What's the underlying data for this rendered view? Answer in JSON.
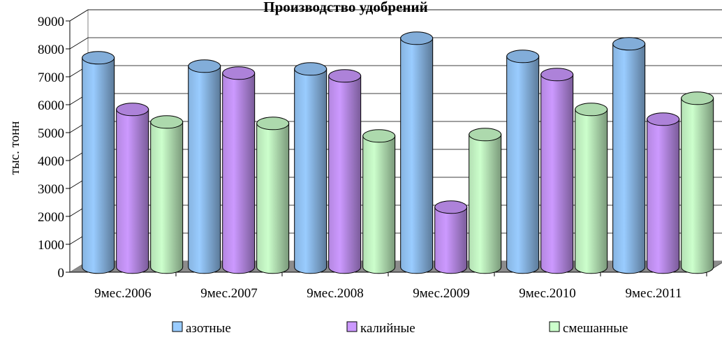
{
  "chart_data": {
    "type": "bar",
    "title": "Производство удобрений",
    "xlabel": "",
    "ylabel": "тыс. тонн",
    "ylim": [
      0,
      9000
    ],
    "y_ticks": [
      0,
      1000,
      2000,
      3000,
      4000,
      5000,
      6000,
      7000,
      8000,
      9000
    ],
    "grid": true,
    "legend_position": "bottom",
    "categories": [
      "9мес.2006",
      "9мес.2007",
      "9мес.2008",
      "9мес.2009",
      "9мес.2010",
      "9мес.2011"
    ],
    "series": [
      {
        "name": "азотные",
        "values": [
          7500,
          7200,
          7100,
          8200,
          7550,
          8000
        ],
        "color": "#99ccff"
      },
      {
        "name": "калийные",
        "values": [
          5650,
          6950,
          6850,
          2150,
          6900,
          5300
        ],
        "color": "#cc99ff"
      },
      {
        "name": "смешанные",
        "values": [
          5200,
          5150,
          4700,
          4750,
          5650,
          6050
        ],
        "color": "#ccffcc"
      }
    ]
  }
}
